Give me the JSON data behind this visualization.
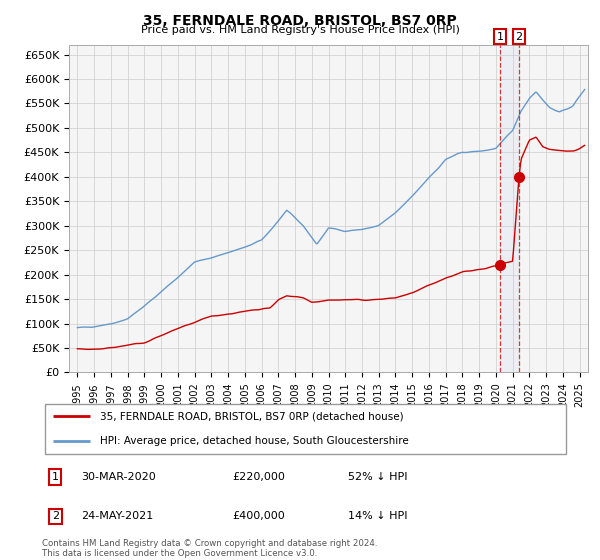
{
  "title": "35, FERNDALE ROAD, BRISTOL, BS7 0RP",
  "subtitle": "Price paid vs. HM Land Registry's House Price Index (HPI)",
  "legend_line1": "35, FERNDALE ROAD, BRISTOL, BS7 0RP (detached house)",
  "legend_line2": "HPI: Average price, detached house, South Gloucestershire",
  "annotation1_date": "30-MAR-2020",
  "annotation1_price": "£220,000",
  "annotation1_note": "52% ↓ HPI",
  "annotation2_date": "24-MAY-2021",
  "annotation2_price": "£400,000",
  "annotation2_note": "14% ↓ HPI",
  "footer": "Contains HM Land Registry data © Crown copyright and database right 2024.\nThis data is licensed under the Open Government Licence v3.0.",
  "hpi_color": "#6699cc",
  "price_color": "#cc0000",
  "vline1_x": 2020.25,
  "vline2_x": 2021.38,
  "point1_y": 220000,
  "point2_y": 400000,
  "ylim": [
    0,
    670000
  ],
  "xlim": [
    1994.5,
    2025.5
  ],
  "background_color": "#f5f5f5",
  "grid_color": "#cccccc",
  "hpi_anchors_t": [
    1995.0,
    1996.0,
    1997.0,
    1998.0,
    1999.0,
    2000.0,
    2001.0,
    2002.0,
    2003.0,
    2004.0,
    2005.0,
    2006.0,
    2007.0,
    2007.5,
    2008.5,
    2009.3,
    2010.0,
    2011.0,
    2012.0,
    2013.0,
    2014.0,
    2015.0,
    2016.0,
    2016.5,
    2017.0,
    2018.0,
    2019.0,
    2019.5,
    2020.0,
    2020.5,
    2021.0,
    2021.5,
    2022.0,
    2022.4,
    2022.8,
    2023.2,
    2023.8,
    2024.2,
    2024.6,
    2025.0,
    2025.3
  ],
  "hpi_anchors_v": [
    90000,
    95000,
    100000,
    110000,
    135000,
    165000,
    195000,
    225000,
    235000,
    245000,
    255000,
    270000,
    310000,
    330000,
    300000,
    262000,
    295000,
    290000,
    292000,
    300000,
    325000,
    360000,
    400000,
    415000,
    435000,
    450000,
    452000,
    455000,
    458000,
    475000,
    495000,
    535000,
    562000,
    575000,
    558000,
    542000,
    532000,
    538000,
    545000,
    565000,
    580000
  ],
  "price_anchors_t": [
    1995.0,
    1996.0,
    1997.0,
    1998.0,
    1999.0,
    2000.0,
    2001.5,
    2003.0,
    2004.5,
    2005.5,
    2006.5,
    2007.0,
    2007.5,
    2008.5,
    2009.0,
    2010.0,
    2011.0,
    2012.0,
    2013.0,
    2014.0,
    2015.0,
    2016.0,
    2017.0,
    2018.0,
    2019.0,
    2019.5,
    2020.0,
    2020.25,
    2020.5,
    2021.0,
    2021.38,
    2021.5,
    2022.0,
    2022.4,
    2022.8,
    2023.2,
    2023.8,
    2024.2,
    2024.6,
    2025.0,
    2025.3
  ],
  "price_anchors_v": [
    47000,
    47500,
    50000,
    56000,
    60000,
    76000,
    95000,
    115000,
    122000,
    128000,
    133000,
    148000,
    157000,
    152000,
    143000,
    148000,
    148000,
    147000,
    150000,
    153000,
    162000,
    178000,
    193000,
    205000,
    210000,
    214000,
    218000,
    220000,
    224000,
    228000,
    400000,
    435000,
    475000,
    482000,
    462000,
    456000,
    453000,
    452000,
    453000,
    457000,
    462000
  ]
}
